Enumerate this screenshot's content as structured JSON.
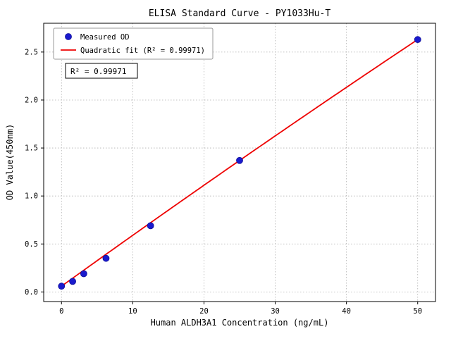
{
  "chart_data": {
    "type": "scatter",
    "title": "ELISA Standard Curve - PY1033Hu-T",
    "xlabel": "Human ALDH3A1 Concentration (ng/mL)",
    "ylabel": "OD Value(450nm)",
    "xlim": [
      -2.5,
      52.5
    ],
    "ylim": [
      -0.1,
      2.8
    ],
    "xticks": [
      0,
      10,
      20,
      30,
      40,
      50
    ],
    "xtick_labels": [
      "0",
      "10",
      "20",
      "30",
      "40",
      "50"
    ],
    "yticks": [
      0.0,
      0.5,
      1.0,
      1.5,
      2.0,
      2.5
    ],
    "ytick_labels": [
      "0.0",
      "0.5",
      "1.0",
      "1.5",
      "2.0",
      "2.5"
    ],
    "grid": "dotted",
    "series": [
      {
        "name": "Measured OD",
        "type": "scatter",
        "x": [
          0,
          1.5625,
          3.125,
          6.25,
          12.5,
          25,
          50
        ],
        "y": [
          0.06,
          0.11,
          0.19,
          0.35,
          0.69,
          1.37,
          2.63
        ],
        "color": "#1a1acd"
      },
      {
        "name": "Quadratic fit (R² = 0.99971)",
        "type": "quadratic_fit",
        "coeffs": [
          0.06,
          0.0534,
          -4e-05
        ],
        "x_range": [
          0,
          50
        ],
        "color": "#ee0000"
      }
    ],
    "legend": {
      "position": "upper left",
      "entries": [
        {
          "label": "Measured OD",
          "marker": "dot",
          "color": "#1a1acd"
        },
        {
          "label": "Quadratic fit (R² = 0.99971)",
          "marker": "line",
          "color": "#ee0000"
        }
      ]
    },
    "annotation": "R² = 0.99971",
    "colors": {
      "grid": "#b0b0b0",
      "spine": "#000000",
      "legend_frame": "#999999",
      "annotation_frame": "#000000",
      "background": "#ffffff"
    }
  }
}
